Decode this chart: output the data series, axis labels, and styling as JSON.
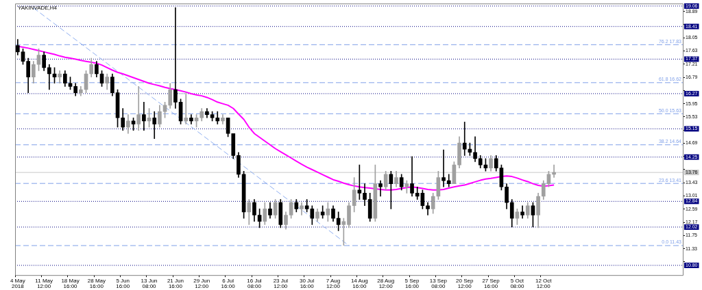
{
  "chart_data": {
    "type": "candlestick",
    "title": "YAKINVADE,H4",
    "grid": false,
    "legend": false,
    "colors": [
      "#000000",
      "#000000",
      "#000000",
      "#a0a0a0",
      "#a0a0a0",
      "#000000",
      "#000000",
      "#000000",
      "#a0a0a0",
      "#000000",
      "#000000",
      "#000000",
      "#a0a0a0",
      "#a0a0a0",
      "#a0a0a0",
      "#000000",
      "#000000",
      "#a0a0a0",
      "#000000",
      "#000000",
      "#000000",
      "#a0a0a0",
      "#000000",
      "#a0a0a0",
      "#000000",
      "#a0a0a0",
      "#000000",
      "#a0a0a0",
      "#a0a0a0",
      "#a0a0a0",
      "#000000",
      "#000000",
      "#a0a0a0",
      "#000000",
      "#a0a0a0",
      "#a0a0a0",
      "#000000",
      "#000000",
      "#000000",
      "#a0a0a0",
      "#000000",
      "#000000",
      "#000000",
      "#000000",
      "#a0a0a0",
      "#000000",
      "#000000",
      "#a0a0a0",
      "#000000",
      "#a0a0a0",
      "#000000",
      "#a0a0a0",
      "#a0a0a0",
      "#000000",
      "#a0a0a0",
      "#000000",
      "#000000",
      "#a0a0a0",
      "#000000",
      "#a0a0a0",
      "#000000",
      "#000000",
      "#a0a0a0",
      "#a0a0a0",
      "#a0a0a0",
      "#000000",
      "#000000",
      "#000000",
      "#a0a0a0",
      "#000000",
      "#a0a0a0",
      "#000000",
      "#a0a0a0",
      "#000000",
      "#a0a0a0",
      "#000000",
      "#000000",
      "#000000",
      "#000000",
      "#a0a0a0",
      "#a0a0a0",
      "#000000",
      "#000000",
      "#a0a0a0",
      "#a0a0a0",
      "#000000",
      "#000000",
      "#000000",
      "#000000",
      "#000000",
      "#a0a0a0",
      "#000000",
      "#000000",
      "#000000",
      "#000000",
      "#a0a0a0",
      "#000000",
      "#a0a0a0",
      "#000000",
      "#a0a0a0",
      "#a0a0a0",
      "#a0a0a0",
      "#a0a0a0",
      null,
      null,
      null,
      null,
      null,
      null,
      null,
      null,
      null,
      null,
      null,
      null,
      null,
      null,
      null,
      null,
      null,
      null,
      null,
      null,
      null,
      null,
      null,
      null
    ],
    "categories": [
      "4 May 2018",
      null,
      null,
      null,
      null,
      "11 May 12:00",
      null,
      null,
      null,
      null,
      "18 May 16:00",
      null,
      null,
      null,
      null,
      "28 May 16:00",
      null,
      null,
      null,
      null,
      "5 Jun 16:00",
      null,
      null,
      null,
      null,
      "13 Jun 08:00",
      null,
      null,
      null,
      null,
      "21 Jun 16:00",
      null,
      null,
      null,
      null,
      "29 Jun 12:00",
      null,
      null,
      null,
      null,
      "6 Jul 16:00",
      null,
      null,
      null,
      null,
      "16 Jul 08:00",
      null,
      null,
      null,
      null,
      "23 Jul 12:00",
      null,
      null,
      null,
      null,
      "30 Jul 16:00",
      null,
      null,
      null,
      null,
      "7 Aug 12:00",
      null,
      null,
      null,
      null,
      "14 Aug 16:00",
      null,
      null,
      null,
      null,
      "28 Aug 12:00",
      null,
      null,
      null,
      null,
      "5 Sep 16:00",
      null,
      null,
      null,
      null,
      "13 Sep 08:00",
      null,
      null,
      null,
      null,
      "20 Sep 12:00",
      null,
      null,
      null,
      null,
      "27 Sep 16:00",
      null,
      null,
      null,
      null,
      "5 Oct 08:00",
      null,
      null,
      null,
      null,
      "12 Oct 12:00",
      null,
      null,
      null,
      null,
      null,
      null,
      null,
      null,
      null,
      null,
      null,
      null,
      null,
      null,
      null,
      null,
      null,
      null,
      null,
      null,
      null,
      null,
      null,
      null,
      null,
      null
    ],
    "ohlc": [
      [
        17.8,
        18.0,
        17.5,
        17.6
      ],
      [
        17.6,
        17.7,
        17.2,
        17.3
      ],
      [
        17.3,
        17.4,
        16.3,
        16.8
      ],
      [
        16.8,
        17.3,
        16.6,
        17.2
      ],
      [
        17.2,
        17.7,
        17.0,
        17.5
      ],
      [
        17.5,
        17.6,
        17.0,
        17.1
      ],
      [
        17.1,
        17.2,
        16.4,
        16.9
      ],
      [
        16.9,
        17.1,
        16.6,
        16.8
      ],
      [
        16.8,
        17.0,
        16.6,
        16.9
      ],
      [
        16.9,
        17.0,
        16.5,
        16.6
      ],
      [
        16.6,
        16.8,
        16.4,
        16.5
      ],
      [
        16.5,
        16.6,
        16.2,
        16.3
      ],
      [
        16.3,
        16.5,
        16.2,
        16.4
      ],
      [
        16.4,
        17.0,
        16.3,
        16.9
      ],
      [
        16.9,
        17.4,
        16.8,
        17.2
      ],
      [
        17.2,
        17.3,
        16.8,
        16.9
      ],
      [
        16.9,
        17.0,
        16.5,
        16.6
      ],
      [
        16.6,
        16.9,
        16.4,
        16.8
      ],
      [
        16.8,
        16.9,
        16.2,
        16.3
      ],
      [
        16.3,
        16.4,
        15.2,
        15.5
      ],
      [
        15.5,
        15.8,
        15.1,
        15.2
      ],
      [
        15.2,
        15.6,
        15.0,
        15.4
      ],
      [
        15.4,
        15.5,
        15.1,
        15.3
      ],
      [
        15.3,
        16.5,
        15.1,
        15.6
      ],
      [
        15.6,
        16.0,
        15.1,
        15.4
      ],
      [
        15.4,
        15.8,
        15.2,
        15.5
      ],
      [
        15.5,
        15.7,
        14.84,
        15.3
      ],
      [
        15.3,
        15.9,
        15.2,
        15.7
      ],
      [
        15.7,
        16.0,
        15.5,
        15.9
      ],
      [
        15.9,
        16.6,
        15.8,
        16.4
      ],
      [
        16.4,
        19.01,
        15.8,
        16.0
      ],
      [
        16.0,
        16.1,
        15.3,
        15.4
      ],
      [
        15.4,
        16.3,
        15.3,
        15.5
      ],
      [
        15.5,
        15.6,
        15.3,
        15.4
      ],
      [
        15.4,
        15.6,
        15.2,
        15.5
      ],
      [
        15.5,
        15.8,
        15.4,
        15.7
      ],
      [
        15.7,
        15.8,
        15.5,
        15.6
      ],
      [
        15.6,
        15.7,
        15.4,
        15.5
      ],
      [
        15.5,
        15.7,
        15.3,
        15.4
      ],
      [
        15.4,
        15.6,
        15.3,
        15.5
      ],
      [
        15.5,
        15.5,
        14.9,
        15.0
      ],
      [
        15.0,
        15.0,
        14.2,
        14.3
      ],
      [
        14.3,
        14.4,
        13.6,
        13.7
      ],
      [
        13.7,
        13.8,
        12.3,
        12.5
      ],
      [
        12.5,
        12.9,
        12.1,
        12.8
      ],
      [
        12.8,
        12.9,
        12.2,
        12.4
      ],
      [
        12.4,
        12.6,
        12.0,
        12.2
      ],
      [
        12.2,
        12.8,
        12.1,
        12.6
      ],
      [
        12.6,
        12.8,
        12.3,
        12.4
      ],
      [
        12.4,
        12.9,
        12.3,
        12.8
      ],
      [
        12.8,
        12.9,
        12.0,
        12.1
      ],
      [
        12.1,
        12.5,
        11.95,
        12.4
      ],
      [
        12.4,
        12.9,
        12.3,
        12.8
      ],
      [
        12.8,
        12.9,
        12.5,
        12.6
      ],
      [
        12.6,
        12.8,
        12.4,
        12.7
      ],
      [
        12.7,
        12.9,
        12.5,
        12.6
      ],
      [
        12.6,
        12.7,
        12.1,
        12.3
      ],
      [
        12.3,
        12.6,
        12.2,
        12.5
      ],
      [
        12.5,
        12.7,
        12.3,
        12.4
      ],
      [
        12.4,
        12.8,
        12.2,
        12.6
      ],
      [
        12.6,
        12.7,
        12.2,
        12.3
      ],
      [
        12.3,
        12.5,
        11.9,
        12.1
      ],
      [
        12.1,
        12.3,
        11.44,
        12.2
      ],
      [
        12.1,
        12.8,
        12.0,
        12.7
      ],
      [
        12.7,
        13.6,
        12.5,
        13.2
      ],
      [
        13.2,
        14.0,
        12.9,
        13.1
      ],
      [
        13.1,
        13.4,
        12.7,
        12.9
      ],
      [
        12.9,
        13.1,
        12.2,
        12.3
      ],
      [
        12.3,
        14.0,
        12.2,
        13.4
      ],
      [
        13.4,
        13.5,
        13.0,
        13.3
      ],
      [
        13.3,
        13.8,
        13.2,
        13.7
      ],
      [
        13.7,
        13.8,
        12.6,
        13.4
      ],
      [
        13.4,
        13.8,
        13.3,
        13.6
      ],
      [
        13.6,
        13.7,
        13.2,
        13.3
      ],
      [
        13.3,
        13.5,
        13.1,
        13.4
      ],
      [
        13.4,
        14.27,
        13.0,
        13.1
      ],
      [
        13.1,
        13.3,
        12.9,
        13.0
      ],
      [
        13.1,
        13.2,
        12.6,
        12.7
      ],
      [
        12.7,
        12.8,
        12.4,
        12.6
      ],
      [
        12.6,
        13.1,
        12.45,
        13.0
      ],
      [
        13.0,
        13.8,
        12.9,
        13.6
      ],
      [
        13.6,
        14.48,
        13.3,
        13.5
      ],
      [
        13.5,
        13.7,
        13.3,
        13.4
      ],
      [
        13.4,
        14.1,
        13.4,
        14.0
      ],
      [
        14.0,
        14.9,
        13.9,
        14.7
      ],
      [
        14.7,
        15.37,
        14.3,
        14.5
      ],
      [
        14.5,
        14.7,
        14.3,
        14.4
      ],
      [
        14.4,
        14.9,
        14.1,
        14.2
      ],
      [
        14.2,
        14.3,
        13.9,
        14.0
      ],
      [
        14.0,
        14.2,
        13.8,
        13.9
      ],
      [
        13.9,
        14.3,
        13.8,
        14.2
      ],
      [
        14.2,
        14.3,
        13.8,
        13.9
      ],
      [
        13.9,
        14.0,
        13.2,
        13.3
      ],
      [
        13.3,
        13.4,
        12.6,
        12.8
      ],
      [
        12.8,
        12.9,
        12.02,
        12.3
      ],
      [
        12.3,
        12.6,
        12.1,
        12.5
      ],
      [
        12.5,
        12.7,
        12.3,
        12.4
      ],
      [
        12.4,
        12.8,
        12.3,
        12.7
      ],
      [
        12.7,
        12.8,
        12.02,
        12.4
      ],
      [
        12.4,
        13.1,
        12.0,
        13.0
      ],
      [
        13.0,
        13.5,
        12.9,
        13.4
      ],
      [
        13.4,
        13.8,
        13.3,
        13.7
      ],
      [
        13.7,
        14.0,
        13.6,
        13.76
      ],
      null,
      null,
      null,
      null,
      null,
      null,
      null,
      null,
      null,
      null,
      null,
      null,
      null,
      null,
      null,
      null,
      null,
      null,
      null,
      null,
      null,
      null,
      null,
      null
    ],
    "series": [
      {
        "type": "line",
        "color": "#ff00ff",
        "line_style": "solid",
        "marker": "none",
        "values": [
          17.78,
          17.75,
          17.72,
          17.68,
          17.64,
          17.6,
          17.56,
          17.52,
          17.47,
          17.43,
          17.4,
          17.37,
          17.33,
          17.3,
          17.27,
          17.24,
          17.18,
          17.1,
          17.02,
          16.95,
          16.9,
          16.84,
          16.78,
          16.72,
          16.66,
          16.6,
          16.56,
          16.52,
          16.47,
          16.43,
          16.4,
          16.36,
          16.32,
          16.27,
          16.23,
          16.2,
          16.15,
          16.08,
          16.0,
          15.95,
          15.9,
          15.8,
          15.62,
          15.45,
          15.2,
          15.0,
          14.88,
          14.76,
          14.64,
          14.52,
          14.42,
          14.32,
          14.22,
          14.12,
          14.02,
          13.93,
          13.85,
          13.77,
          13.69,
          13.61,
          13.53,
          13.48,
          13.42,
          13.37,
          13.33,
          13.3,
          13.28,
          13.26,
          13.24,
          13.22,
          13.2,
          13.2,
          13.22,
          13.25,
          13.28,
          13.3,
          13.28,
          13.25,
          13.22,
          13.2,
          13.2,
          13.22,
          13.26,
          13.3,
          13.33,
          13.36,
          13.41,
          13.46,
          13.51,
          13.55,
          13.57,
          13.6,
          13.63,
          13.65,
          13.63,
          13.58,
          13.52,
          13.47,
          13.4,
          13.35,
          13.32,
          13.34,
          13.36,
          null,
          null,
          null,
          null,
          null,
          null,
          null,
          null,
          null,
          null,
          null,
          null,
          null,
          null,
          null,
          null,
          null,
          null,
          null,
          null,
          null,
          null,
          null,
          null
        ]
      },
      {
        "type": "line",
        "color": "#8eaef0",
        "line_style": "dashed",
        "marker": "none",
        "values": [
          null,
          null,
          null,
          19.0,
          null,
          null,
          null,
          null,
          null,
          null,
          null,
          null,
          null,
          null,
          null,
          null,
          null,
          null,
          null,
          null,
          null,
          null,
          null,
          null,
          null,
          null,
          null,
          null,
          null,
          null,
          null,
          null,
          null,
          null,
          null,
          null,
          null,
          null,
          null,
          null,
          null,
          null,
          null,
          null,
          null,
          null,
          null,
          null,
          null,
          null,
          null,
          null,
          null,
          null,
          null,
          null,
          null,
          null,
          null,
          null,
          null,
          null,
          null,
          11.43,
          null,
          null,
          null,
          null,
          null,
          null,
          null,
          null,
          null,
          null,
          null,
          null,
          null,
          null,
          null,
          null,
          null,
          null,
          null,
          null,
          null,
          null,
          null,
          null,
          null,
          null,
          null,
          null,
          null,
          null,
          null,
          null,
          null,
          null,
          null,
          null,
          null,
          null,
          null,
          null,
          null,
          null,
          null,
          null,
          null,
          null,
          null,
          null,
          null,
          null,
          null,
          null,
          null,
          null,
          null,
          null,
          null,
          null,
          null,
          null,
          null,
          null,
          null
        ]
      }
    ],
    "ylim": [
      10.49,
      19.14
    ],
    "yticks": [
      18.89,
      {
        "value": 18.47,
        "label": null
      },
      18.05,
      17.63,
      17.21,
      16.79,
      {
        "value": 16.37,
        "label": null
      },
      15.95,
      15.53,
      {
        "value": 15.11,
        "label": null
      },
      14.69,
      {
        "value": 14.27,
        "label": null
      },
      {
        "value": 13.85,
        "label": null
      },
      13.43,
      13.01,
      12.59,
      12.17,
      11.75,
      11.33,
      {
        "value": 10.91,
        "label": null
      }
    ],
    "ref_lines": [
      {
        "axis": "y",
        "value": 19.06,
        "label": "19.06",
        "color": "#000080",
        "line_style": "dotted"
      },
      {
        "axis": "y",
        "value": 18.41,
        "label": "18.41",
        "color": "#000080",
        "line_style": "dotted"
      },
      {
        "axis": "y",
        "value": 17.37,
        "label": "17.37",
        "color": "#000080",
        "line_style": "dotted"
      },
      {
        "axis": "y",
        "value": 16.27,
        "label": "16.27",
        "color": "#000080",
        "line_style": "dotted"
      },
      {
        "axis": "y",
        "value": 15.15,
        "label": "15.15",
        "color": "#000080",
        "line_style": "dotted"
      },
      {
        "axis": "y",
        "value": 14.25,
        "label": "14.25",
        "color": "#000080",
        "line_style": "dotted"
      },
      {
        "axis": "y",
        "value": 12.84,
        "label": "12.84",
        "color": "#000080",
        "line_style": "dotted"
      },
      {
        "axis": "y",
        "value": 12.02,
        "label": "12.02",
        "color": "#000080",
        "line_style": "dotted"
      },
      {
        "axis": "y",
        "value": 10.8,
        "label": "10.80",
        "color": "#000080",
        "line_style": "dotted"
      },
      {
        "axis": "y",
        "value": 17.83,
        "label": "76.2 17.83",
        "color": "#7f9fe8",
        "line_style": "dashed"
      },
      {
        "axis": "y",
        "value": 16.62,
        "label": "61.8 16.62",
        "color": "#7f9fe8",
        "line_style": "dashed"
      },
      {
        "axis": "y",
        "value": 15.63,
        "label": "50.0 15.63",
        "color": "#7f9fe8",
        "line_style": "dashed"
      },
      {
        "axis": "y",
        "value": 14.64,
        "label": "38.2 14.64",
        "color": "#7f9fe8",
        "line_style": "dashed"
      },
      {
        "axis": "y",
        "value": 13.41,
        "label": "23.6 13.41",
        "color": "#7f9fe8",
        "line_style": "dashed"
      },
      {
        "axis": "y",
        "value": 11.43,
        "label": "0.0 11.43",
        "color": "#7f9fe8",
        "line_style": "dashed"
      },
      {
        "axis": "y",
        "value": 13.76,
        "label": "13.76",
        "color": "#c8c8c8",
        "line_style": "solid"
      }
    ]
  }
}
